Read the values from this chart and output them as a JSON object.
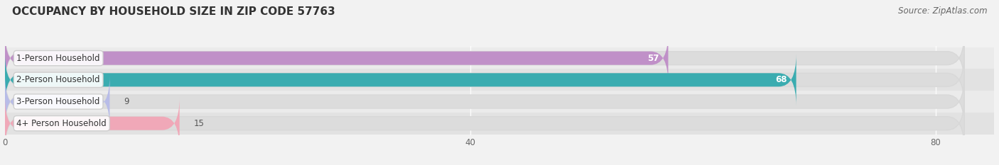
{
  "title": "OCCUPANCY BY HOUSEHOLD SIZE IN ZIP CODE 57763",
  "source": "Source: ZipAtlas.com",
  "categories": [
    "1-Person Household",
    "2-Person Household",
    "3-Person Household",
    "4+ Person Household"
  ],
  "values": [
    57,
    68,
    9,
    15
  ],
  "bar_colors": [
    "#c090c8",
    "#3aacb0",
    "#b8bcE8",
    "#f0a8b8"
  ],
  "bar_label_colors": [
    "white",
    "white",
    "black",
    "black"
  ],
  "xlim": [
    0,
    85
  ],
  "xticks": [
    0,
    40,
    80
  ],
  "title_fontsize": 11,
  "source_fontsize": 8.5,
  "label_fontsize": 8.5,
  "value_fontsize": 8.5,
  "background_color": "#f2f2f2",
  "bar_bg_color": "#e4e4e4",
  "row_bg_colors": [
    "#ebebeb",
    "#e0e0e0"
  ],
  "bar_height": 0.62
}
